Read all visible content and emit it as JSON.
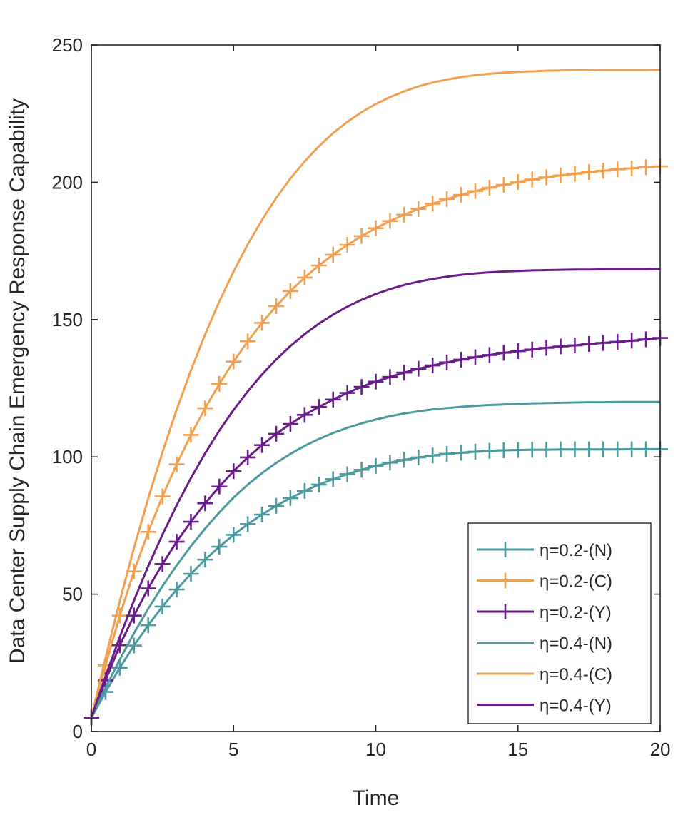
{
  "chart_data": {
    "type": "line",
    "title": "",
    "xlabel": "Time",
    "ylabel": "Data Center Supply Chain Emergency Response Capability",
    "xlim": [
      0,
      20
    ],
    "ylim": [
      0,
      250
    ],
    "xticks": [
      "0",
      "5",
      "10",
      "15",
      "20"
    ],
    "yticks": [
      "0",
      "50",
      "100",
      "150",
      "200",
      "250"
    ],
    "grid": false,
    "legend_position": "bottom-right",
    "x": [
      0,
      0.5,
      1,
      1.5,
      2,
      2.5,
      3,
      3.5,
      4,
      4.5,
      5,
      5.5,
      6,
      6.5,
      7,
      7.5,
      8,
      8.5,
      9,
      9.5,
      10,
      10.5,
      11,
      11.5,
      12,
      12.5,
      13,
      13.5,
      14,
      14.5,
      15,
      15.5,
      16,
      16.5,
      17,
      17.5,
      18,
      18.5,
      19,
      19.5,
      20
    ],
    "series": [
      {
        "name": "η=0.2-(N)",
        "color": "#4a9aa0",
        "marker": "plus",
        "values": [
          5,
          14.4,
          23.2,
          31.3,
          38.7,
          45.5,
          51.7,
          57.4,
          62.6,
          67.3,
          71.6,
          75.5,
          79.0,
          82.2,
          85.0,
          87.6,
          89.9,
          91.9,
          93.7,
          95.3,
          96.7,
          97.9,
          98.9,
          99.8,
          100.5,
          101.1,
          101.5,
          101.9,
          102.2,
          102.4,
          102.5,
          102.6,
          102.6,
          102.7,
          102.7,
          102.7,
          102.7,
          102.7,
          102.8,
          102.8,
          102.8
        ]
      },
      {
        "name": "η=0.2-(C)",
        "color": "#f0a050",
        "marker": "plus",
        "values": [
          5,
          24.1,
          42.2,
          58.3,
          72.7,
          85.6,
          97.3,
          108.0,
          117.7,
          126.6,
          134.7,
          142.1,
          148.8,
          154.9,
          160.4,
          165.3,
          169.7,
          173.6,
          177.2,
          180.4,
          183.3,
          185.9,
          188.2,
          190.3,
          192.2,
          193.9,
          195.4,
          196.8,
          198.0,
          199.1,
          200.1,
          201.0,
          201.8,
          202.5,
          203.1,
          203.7,
          204.2,
          204.7,
          205.1,
          205.5,
          205.8
        ]
      },
      {
        "name": "η=0.2-(Y)",
        "color": "#6a1d8a",
        "marker": "plus",
        "values": [
          5,
          18.6,
          31.4,
          42.2,
          52.1,
          61.0,
          69.1,
          76.4,
          83.1,
          89.2,
          94.8,
          99.8,
          104.3,
          108.4,
          112.0,
          115.3,
          118.2,
          120.9,
          123.3,
          125.5,
          127.4,
          129.1,
          130.7,
          132.1,
          133.3,
          134.4,
          135.4,
          136.3,
          137.1,
          137.9,
          138.5,
          139.1,
          139.7,
          140.2,
          140.6,
          141.1,
          141.5,
          141.9,
          142.3,
          142.8,
          143.3
        ]
      },
      {
        "name": "η=0.4-(N)",
        "color": "#4a9aa0",
        "marker": "none",
        "values": [
          5,
          15.9,
          26.2,
          35.8,
          44.7,
          52.9,
          60.5,
          67.5,
          73.9,
          79.8,
          85.2,
          89.9,
          94.1,
          97.8,
          101.1,
          104.0,
          106.5,
          108.7,
          110.6,
          112.2,
          113.6,
          114.8,
          115.8,
          116.6,
          117.3,
          117.8,
          118.2,
          118.6,
          118.9,
          119.1,
          119.3,
          119.5,
          119.6,
          119.7,
          119.8,
          119.9,
          119.9,
          120.0,
          120.0,
          120.0,
          120.0
        ]
      },
      {
        "name": "η=0.4-(C)",
        "color": "#f0a050",
        "marker": "none",
        "values": [
          5,
          26.8,
          47.5,
          66.9,
          84.9,
          101.7,
          117.2,
          131.5,
          144.6,
          156.6,
          167.5,
          177.4,
          186.3,
          194.3,
          201.4,
          207.6,
          213.1,
          217.9,
          222.0,
          225.5,
          228.5,
          231.0,
          233.1,
          234.9,
          236.3,
          237.4,
          238.3,
          239.0,
          239.5,
          239.9,
          240.2,
          240.4,
          240.6,
          240.7,
          240.8,
          240.8,
          240.9,
          240.9,
          240.9,
          240.9,
          241.0
        ]
      },
      {
        "name": "η=0.4-(Y)",
        "color": "#6a1d8a",
        "marker": "none",
        "values": [
          5,
          20.1,
          34.4,
          47.7,
          60.2,
          71.7,
          82.4,
          92.3,
          101.3,
          109.6,
          117.1,
          123.9,
          130.0,
          135.5,
          140.4,
          144.7,
          148.5,
          151.8,
          154.7,
          157.2,
          159.3,
          161.1,
          162.6,
          163.8,
          164.8,
          165.6,
          166.3,
          166.8,
          167.2,
          167.5,
          167.7,
          167.9,
          168.0,
          168.1,
          168.2,
          168.2,
          168.3,
          168.3,
          168.3,
          168.3,
          168.4
        ]
      }
    ]
  }
}
